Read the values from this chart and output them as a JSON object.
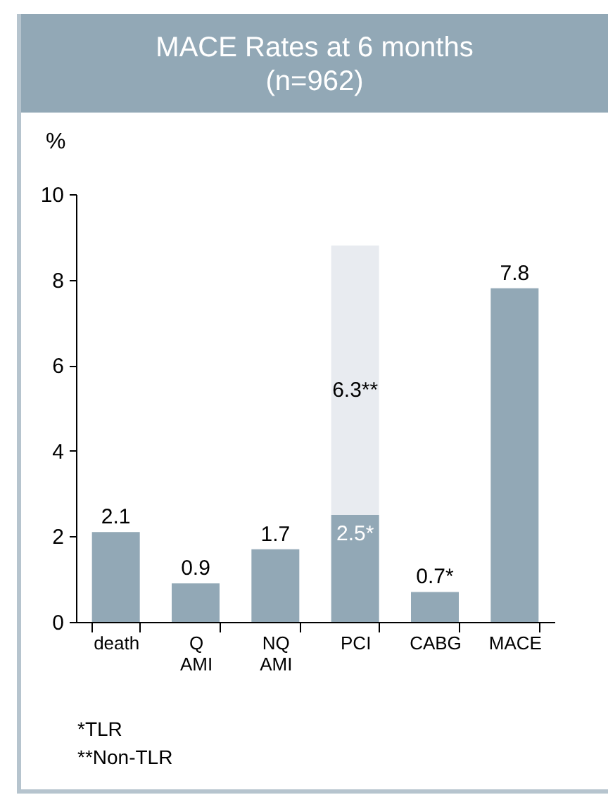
{
  "chart_data": {
    "type": "bar",
    "title": "MACE Rates at 6 months",
    "subtitle": "(n=962)",
    "ylabel": "%",
    "categories": [
      "death",
      "Q\nAMI",
      "NQ\nAMI",
      "PCI",
      "CABG",
      "MACE"
    ],
    "stacked": true,
    "series": [
      {
        "color": "#92a8b6",
        "values": [
          2.1,
          0.9,
          1.7,
          2.5,
          0.7,
          7.8
        ],
        "value_labels": [
          "2.1",
          "0.9",
          "1.7",
          "2.5*",
          "0.7*",
          "7.8"
        ]
      },
      {
        "color": "#e8ebf0",
        "values": [
          null,
          null,
          null,
          6.3,
          null,
          null
        ],
        "value_labels": [
          null,
          null,
          null,
          "6.3**",
          null,
          null
        ]
      }
    ],
    "ylim": [
      0,
      10
    ],
    "yticks": [
      0,
      2,
      4,
      6,
      8,
      10
    ],
    "grid": false,
    "legend": false,
    "annotations": [
      "*TLR",
      "**Non-TLR"
    ]
  }
}
